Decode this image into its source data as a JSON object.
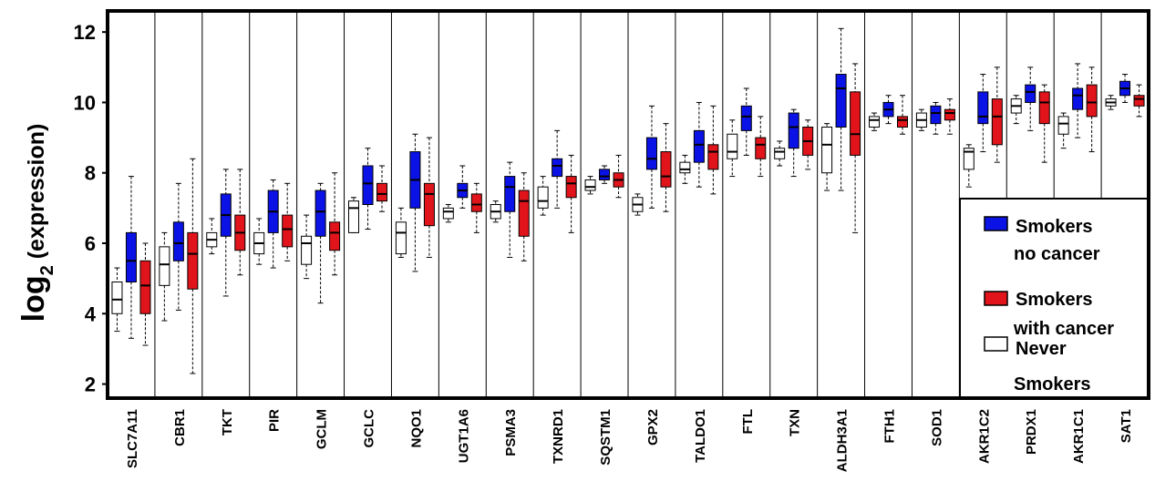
{
  "chart_data": {
    "type": "box",
    "ylabel_main": "log",
    "ylabel_sub": "2",
    "ylabel_rest": " (expression)",
    "ylim": [
      1.6,
      12.6
    ],
    "yticks": [
      2,
      4,
      6,
      8,
      10,
      12
    ],
    "grid": false,
    "legend_position": "bottom-right",
    "series": [
      {
        "key": "never",
        "name": "Never Smokers",
        "color": "#ffffff"
      },
      {
        "key": "smokers",
        "name": "Smokers no cancer",
        "color": "#0a12e6"
      },
      {
        "key": "cancer",
        "name": "Smokers with cancer",
        "color": "#e0141a"
      }
    ],
    "legend": [
      {
        "key": "smokers",
        "lines": [
          "Smokers",
          "no cancer"
        ]
      },
      {
        "key": "cancer",
        "lines": [
          "Smokers",
          "with cancer"
        ]
      },
      {
        "key": "never",
        "lines": [
          "Never",
          "Smokers"
        ]
      }
    ],
    "genes": [
      {
        "name": "SLC7A11",
        "never": {
          "min": 3.5,
          "q1": 4.0,
          "median": 4.4,
          "q3": 4.9,
          "max": 5.3
        },
        "smokers": {
          "min": 3.3,
          "q1": 4.9,
          "median": 5.5,
          "q3": 6.3,
          "max": 7.9
        },
        "cancer": {
          "min": 3.1,
          "q1": 4.0,
          "median": 4.8,
          "q3": 5.5,
          "max": 6.0
        }
      },
      {
        "name": "CBR1",
        "never": {
          "min": 3.8,
          "q1": 4.8,
          "median": 5.4,
          "q3": 5.9,
          "max": 6.3
        },
        "smokers": {
          "min": 4.1,
          "q1": 5.5,
          "median": 6.0,
          "q3": 6.6,
          "max": 7.7
        },
        "cancer": {
          "min": 2.3,
          "q1": 4.7,
          "median": 5.7,
          "q3": 6.3,
          "max": 8.4
        }
      },
      {
        "name": "TKT",
        "never": {
          "min": 5.7,
          "q1": 5.9,
          "median": 6.1,
          "q3": 6.3,
          "max": 6.7
        },
        "smokers": {
          "min": 4.5,
          "q1": 6.2,
          "median": 6.8,
          "q3": 7.4,
          "max": 8.1
        },
        "cancer": {
          "min": 5.1,
          "q1": 5.8,
          "median": 6.3,
          "q3": 6.8,
          "max": 8.1
        }
      },
      {
        "name": "PIR",
        "never": {
          "min": 5.4,
          "q1": 5.7,
          "median": 6.0,
          "q3": 6.3,
          "max": 6.7
        },
        "smokers": {
          "min": 5.3,
          "q1": 6.3,
          "median": 6.9,
          "q3": 7.5,
          "max": 7.8
        },
        "cancer": {
          "min": 5.5,
          "q1": 5.9,
          "median": 6.4,
          "q3": 6.8,
          "max": 7.7
        }
      },
      {
        "name": "GCLM",
        "never": {
          "min": 5.0,
          "q1": 5.4,
          "median": 6.0,
          "q3": 6.2,
          "max": 6.8
        },
        "smokers": {
          "min": 4.3,
          "q1": 6.2,
          "median": 6.9,
          "q3": 7.5,
          "max": 7.7
        },
        "cancer": {
          "min": 5.1,
          "q1": 5.8,
          "median": 6.3,
          "q3": 6.6,
          "max": 8.0
        }
      },
      {
        "name": "GCLC",
        "never": {
          "min": 6.3,
          "q1": 6.3,
          "median": 7.0,
          "q3": 7.2,
          "max": 7.3
        },
        "smokers": {
          "min": 6.4,
          "q1": 7.1,
          "median": 7.7,
          "q3": 8.2,
          "max": 8.7
        },
        "cancer": {
          "min": 6.9,
          "q1": 7.2,
          "median": 7.4,
          "q3": 7.7,
          "max": 8.2
        }
      },
      {
        "name": "NQO1",
        "never": {
          "min": 5.6,
          "q1": 5.7,
          "median": 6.3,
          "q3": 6.6,
          "max": 7.0
        },
        "smokers": {
          "min": 5.2,
          "q1": 7.0,
          "median": 7.8,
          "q3": 8.6,
          "max": 9.1
        },
        "cancer": {
          "min": 5.6,
          "q1": 6.5,
          "median": 7.4,
          "q3": 7.7,
          "max": 9.0
        }
      },
      {
        "name": "UGT1A6",
        "never": {
          "min": 6.6,
          "q1": 6.7,
          "median": 6.9,
          "q3": 7.0,
          "max": 7.1
        },
        "smokers": {
          "min": 7.0,
          "q1": 7.3,
          "median": 7.5,
          "q3": 7.7,
          "max": 8.2
        },
        "cancer": {
          "min": 6.3,
          "q1": 6.9,
          "median": 7.1,
          "q3": 7.4,
          "max": 7.7
        }
      },
      {
        "name": "PSMA3",
        "never": {
          "min": 6.6,
          "q1": 6.7,
          "median": 6.9,
          "q3": 7.1,
          "max": 7.2
        },
        "smokers": {
          "min": 5.6,
          "q1": 6.9,
          "median": 7.6,
          "q3": 7.9,
          "max": 8.3
        },
        "cancer": {
          "min": 5.5,
          "q1": 6.2,
          "median": 7.2,
          "q3": 7.5,
          "max": 8.0
        }
      },
      {
        "name": "TXNRD1",
        "never": {
          "min": 6.8,
          "q1": 7.0,
          "median": 7.2,
          "q3": 7.6,
          "max": 7.9
        },
        "smokers": {
          "min": 7.0,
          "q1": 7.9,
          "median": 8.2,
          "q3": 8.4,
          "max": 9.2
        },
        "cancer": {
          "min": 6.3,
          "q1": 7.3,
          "median": 7.7,
          "q3": 7.9,
          "max": 8.5
        }
      },
      {
        "name": "SQSTM1",
        "never": {
          "min": 7.4,
          "q1": 7.5,
          "median": 7.6,
          "q3": 7.8,
          "max": 7.9
        },
        "smokers": {
          "min": 7.7,
          "q1": 7.8,
          "median": 7.9,
          "q3": 8.1,
          "max": 8.2
        },
        "cancer": {
          "min": 7.3,
          "q1": 7.6,
          "median": 7.8,
          "q3": 8.0,
          "max": 8.5
        }
      },
      {
        "name": "GPX2",
        "never": {
          "min": 6.8,
          "q1": 6.9,
          "median": 7.1,
          "q3": 7.3,
          "max": 7.4
        },
        "smokers": {
          "min": 7.0,
          "q1": 8.1,
          "median": 8.4,
          "q3": 9.0,
          "max": 9.9
        },
        "cancer": {
          "min": 6.9,
          "q1": 7.6,
          "median": 7.9,
          "q3": 8.6,
          "max": 9.4
        }
      },
      {
        "name": "TALDO1",
        "never": {
          "min": 7.7,
          "q1": 8.0,
          "median": 8.1,
          "q3": 8.3,
          "max": 8.5
        },
        "smokers": {
          "min": 7.6,
          "q1": 8.3,
          "median": 8.8,
          "q3": 9.2,
          "max": 10.0
        },
        "cancer": {
          "min": 7.4,
          "q1": 8.1,
          "median": 8.6,
          "q3": 8.8,
          "max": 9.9
        }
      },
      {
        "name": "FTL",
        "never": {
          "min": 7.9,
          "q1": 8.4,
          "median": 8.6,
          "q3": 9.1,
          "max": 9.5
        },
        "smokers": {
          "min": 8.5,
          "q1": 9.2,
          "median": 9.6,
          "q3": 9.9,
          "max": 10.4
        },
        "cancer": {
          "min": 7.9,
          "q1": 8.4,
          "median": 8.8,
          "q3": 9.0,
          "max": 9.6
        }
      },
      {
        "name": "TXN",
        "never": {
          "min": 8.2,
          "q1": 8.4,
          "median": 8.6,
          "q3": 8.7,
          "max": 8.9
        },
        "smokers": {
          "min": 7.9,
          "q1": 8.7,
          "median": 9.3,
          "q3": 9.7,
          "max": 9.8
        },
        "cancer": {
          "min": 8.1,
          "q1": 8.5,
          "median": 8.9,
          "q3": 9.3,
          "max": 9.5
        }
      },
      {
        "name": "ALDH3A1",
        "never": {
          "min": 7.5,
          "q1": 8.0,
          "median": 8.8,
          "q3": 9.3,
          "max": 9.4
        },
        "smokers": {
          "min": 7.5,
          "q1": 9.3,
          "median": 10.4,
          "q3": 10.8,
          "max": 12.1
        },
        "cancer": {
          "min": 6.3,
          "q1": 8.5,
          "median": 9.1,
          "q3": 10.3,
          "max": 11.1
        }
      },
      {
        "name": "FTH1",
        "never": {
          "min": 9.2,
          "q1": 9.3,
          "median": 9.5,
          "q3": 9.6,
          "max": 9.7
        },
        "smokers": {
          "min": 9.4,
          "q1": 9.6,
          "median": 9.8,
          "q3": 10.0,
          "max": 10.2
        },
        "cancer": {
          "min": 9.1,
          "q1": 9.3,
          "median": 9.5,
          "q3": 9.6,
          "max": 10.2
        }
      },
      {
        "name": "SOD1",
        "never": {
          "min": 9.2,
          "q1": 9.3,
          "median": 9.5,
          "q3": 9.7,
          "max": 9.8
        },
        "smokers": {
          "min": 9.1,
          "q1": 9.4,
          "median": 9.7,
          "q3": 9.9,
          "max": 10.0
        },
        "cancer": {
          "min": 9.1,
          "q1": 9.5,
          "median": 9.7,
          "q3": 9.8,
          "max": 10.1
        }
      },
      {
        "name": "AKR1C2",
        "never": {
          "min": 7.6,
          "q1": 8.1,
          "median": 8.6,
          "q3": 8.7,
          "max": 8.8
        },
        "smokers": {
          "min": 8.6,
          "q1": 9.4,
          "median": 9.6,
          "q3": 10.3,
          "max": 10.8
        },
        "cancer": {
          "min": 8.3,
          "q1": 8.8,
          "median": 9.6,
          "q3": 10.1,
          "max": 11.0
        }
      },
      {
        "name": "PRDX1",
        "never": {
          "min": 9.4,
          "q1": 9.7,
          "median": 9.9,
          "q3": 10.1,
          "max": 10.2
        },
        "smokers": {
          "min": 9.2,
          "q1": 10.0,
          "median": 10.3,
          "q3": 10.5,
          "max": 11.0
        },
        "cancer": {
          "min": 8.3,
          "q1": 9.4,
          "median": 10.0,
          "q3": 10.3,
          "max": 10.5
        }
      },
      {
        "name": "AKR1C1",
        "never": {
          "min": 8.7,
          "q1": 9.1,
          "median": 9.4,
          "q3": 9.6,
          "max": 9.7
        },
        "smokers": {
          "min": 9.0,
          "q1": 9.8,
          "median": 10.2,
          "q3": 10.4,
          "max": 11.1
        },
        "cancer": {
          "min": 8.6,
          "q1": 9.6,
          "median": 10.0,
          "q3": 10.5,
          "max": 11.0
        }
      },
      {
        "name": "SAT1",
        "never": {
          "min": 9.8,
          "q1": 9.9,
          "median": 10.0,
          "q3": 10.1,
          "max": 10.2
        },
        "smokers": {
          "min": 10.0,
          "q1": 10.2,
          "median": 10.4,
          "q3": 10.6,
          "max": 10.8
        },
        "cancer": {
          "min": 9.6,
          "q1": 9.9,
          "median": 10.1,
          "q3": 10.2,
          "max": 10.5
        }
      }
    ]
  }
}
